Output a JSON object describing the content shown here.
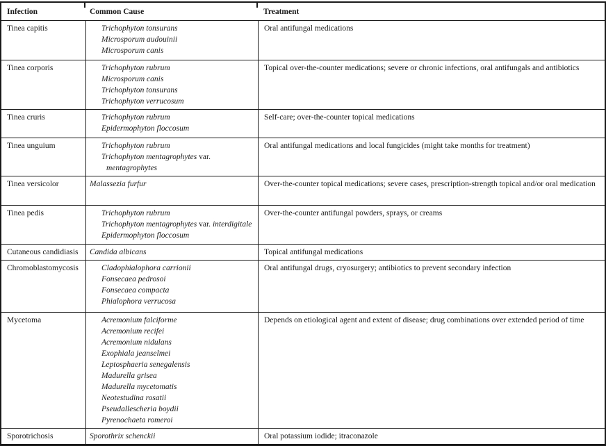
{
  "table": {
    "background": "#ffffff",
    "border_color": "#1a1a1a",
    "text_color": "#1a1a1a",
    "headers": [
      "Infection",
      "Common Cause",
      "Treatment"
    ],
    "rows": [
      {
        "infection": "Tinea capitis",
        "causes_indented": true,
        "causes": [
          {
            "cont": false,
            "seg": [
              {
                "t": "Trichophyton tonsurans",
                "i": true
              }
            ]
          },
          {
            "cont": false,
            "seg": [
              {
                "t": "Microsporum audouinii",
                "i": true
              }
            ]
          },
          {
            "cont": false,
            "seg": [
              {
                "t": "Microsporum canis",
                "i": true
              }
            ]
          }
        ],
        "treatment": "Oral antifungal medications"
      },
      {
        "infection": "Tinea corporis",
        "causes_indented": true,
        "causes": [
          {
            "cont": false,
            "seg": [
              {
                "t": "Trichophyton rubrum",
                "i": true
              }
            ]
          },
          {
            "cont": false,
            "seg": [
              {
                "t": "Microsporum canis",
                "i": true
              }
            ]
          },
          {
            "cont": false,
            "seg": [
              {
                "t": "Trichophyton tonsurans",
                "i": true
              }
            ]
          },
          {
            "cont": false,
            "seg": [
              {
                "t": "Trichophyton verrucosum",
                "i": true
              }
            ]
          }
        ],
        "treatment": "Topical over-the-counter medications; severe or chronic infections, oral antifungals and antibiotics"
      },
      {
        "infection": "Tinea cruris",
        "causes_indented": true,
        "causes": [
          {
            "cont": false,
            "seg": [
              {
                "t": "Trichophyton rubrum",
                "i": true
              }
            ]
          },
          {
            "cont": false,
            "seg": [
              {
                "t": "Epidermophyton floccosum",
                "i": true
              }
            ]
          }
        ],
        "treatment": "Self-care; over-the-counter topical medications"
      },
      {
        "infection": "Tinea unguium",
        "causes_indented": true,
        "causes": [
          {
            "cont": false,
            "seg": [
              {
                "t": "Trichophyton rubrum",
                "i": true
              }
            ]
          },
          {
            "cont": false,
            "seg": [
              {
                "t": "Trichophyton mentagrophytes ",
                "i": true
              },
              {
                "t": "var.",
                "i": false
              }
            ]
          },
          {
            "cont": true,
            "seg": [
              {
                "t": "mentagrophytes",
                "i": true
              }
            ]
          }
        ],
        "treatment": "Oral antifungal medications and local fungicides (might take months for treatment)"
      },
      {
        "infection": "Tinea versicolor",
        "causes_indented": false,
        "causes": [
          {
            "cont": false,
            "seg": [
              {
                "t": "Malassezia furfur",
                "i": true
              }
            ]
          }
        ],
        "treatment": "Over-the-counter topical medications; severe cases, prescription-strength topical and/or oral medication"
      },
      {
        "infection": "Tinea pedis",
        "causes_indented": true,
        "causes": [
          {
            "cont": false,
            "seg": [
              {
                "t": "Trichophyton rubrum",
                "i": true
              }
            ]
          },
          {
            "cont": false,
            "seg": [
              {
                "t": "Trichophyton mentagrophytes ",
                "i": true
              },
              {
                "t": "var. ",
                "i": false
              },
              {
                "t": "interdigitale",
                "i": true
              }
            ]
          },
          {
            "cont": false,
            "seg": [
              {
                "t": "Epidermophyton floccosum",
                "i": true
              }
            ]
          }
        ],
        "treatment": "Over-the-counter antifungal powders, sprays, or creams"
      },
      {
        "infection": "Cutaneous candidiasis",
        "causes_indented": false,
        "causes": [
          {
            "cont": false,
            "seg": [
              {
                "t": "Candida albicans",
                "i": true
              }
            ]
          }
        ],
        "treatment": "Topical antifungal medications"
      },
      {
        "infection": "Chromoblastomycosis",
        "causes_indented": true,
        "causes": [
          {
            "cont": false,
            "seg": [
              {
                "t": "Cladophialophora carrionii",
                "i": true
              }
            ]
          },
          {
            "cont": false,
            "seg": [
              {
                "t": "Fonsecaea pedrosoi",
                "i": true
              }
            ]
          },
          {
            "cont": false,
            "seg": [
              {
                "t": "Fonsecaea compacta",
                "i": true
              }
            ]
          },
          {
            "cont": false,
            "seg": [
              {
                "t": "Phialophora verrucosa",
                "i": true
              }
            ]
          }
        ],
        "treatment": "Oral antifungal drugs, cryosurgery; antibiotics to prevent secondary infection"
      },
      {
        "infection": "Mycetoma",
        "causes_indented": true,
        "causes": [
          {
            "cont": false,
            "seg": [
              {
                "t": "Acremonium falciforme",
                "i": true
              }
            ]
          },
          {
            "cont": false,
            "seg": [
              {
                "t": "Acremonium recifei",
                "i": true
              }
            ]
          },
          {
            "cont": false,
            "seg": [
              {
                "t": "Acremonium nidulans",
                "i": true
              }
            ]
          },
          {
            "cont": false,
            "seg": [
              {
                "t": "Exophiala jeanselmei",
                "i": true
              }
            ]
          },
          {
            "cont": false,
            "seg": [
              {
                "t": "Leptosphaeria senegalensis",
                "i": true
              }
            ]
          },
          {
            "cont": false,
            "seg": [
              {
                "t": "Madurella grisea",
                "i": true
              }
            ]
          },
          {
            "cont": false,
            "seg": [
              {
                "t": "Madurella mycetomatis",
                "i": true
              }
            ]
          },
          {
            "cont": false,
            "seg": [
              {
                "t": "Neotestudina rosatii",
                "i": true
              }
            ]
          },
          {
            "cont": false,
            "seg": [
              {
                "t": "Pseudallescheria boydii",
                "i": true
              }
            ]
          },
          {
            "cont": false,
            "seg": [
              {
                "t": "Pyrenochaeta romeroi",
                "i": true
              }
            ]
          }
        ],
        "treatment": "Depends on etiological agent and extent of disease; drug combinations over extended period of time"
      },
      {
        "infection": "Sporotrichosis",
        "causes_indented": false,
        "causes": [
          {
            "cont": false,
            "seg": [
              {
                "t": "Sporothrix schenckii",
                "i": true
              }
            ]
          }
        ],
        "treatment": "Oral potassium iodide; itraconazole"
      }
    ]
  }
}
